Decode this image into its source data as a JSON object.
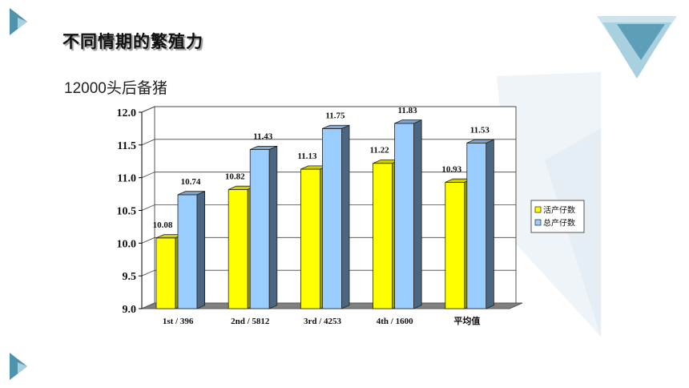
{
  "slide": {
    "title": "不同情期的繁殖力",
    "subtitle": "12000头后备猪"
  },
  "colors": {
    "accent_teal": "#4f93ad",
    "accent_light": "#a9d0de",
    "series1": "#ffff00",
    "series2": "#99ccff"
  },
  "chart_data": {
    "type": "bar",
    "categories": [
      "1st / 396",
      "2nd / 5812",
      "3rd / 4253",
      "4th / 1600",
      "平均值"
    ],
    "series": [
      {
        "name": "活产仔数",
        "values": [
          10.08,
          10.82,
          11.13,
          11.22,
          10.93
        ],
        "data_labels": [
          "10.08",
          "10.82",
          "11.13",
          "11.22",
          "10.93"
        ]
      },
      {
        "name": "总产仔数",
        "values": [
          10.74,
          11.43,
          11.75,
          11.83,
          11.53
        ],
        "data_labels": [
          "10.74",
          "11.43",
          "11.75",
          "11.83",
          "11.53"
        ]
      }
    ],
    "ylim": [
      9.0,
      12.0
    ],
    "yticks": [
      "9.0",
      "9.5",
      "10.0",
      "10.5",
      "11.0",
      "11.5",
      "12.0"
    ],
    "grid": true,
    "legend_position": "right",
    "style": "3d-column"
  }
}
